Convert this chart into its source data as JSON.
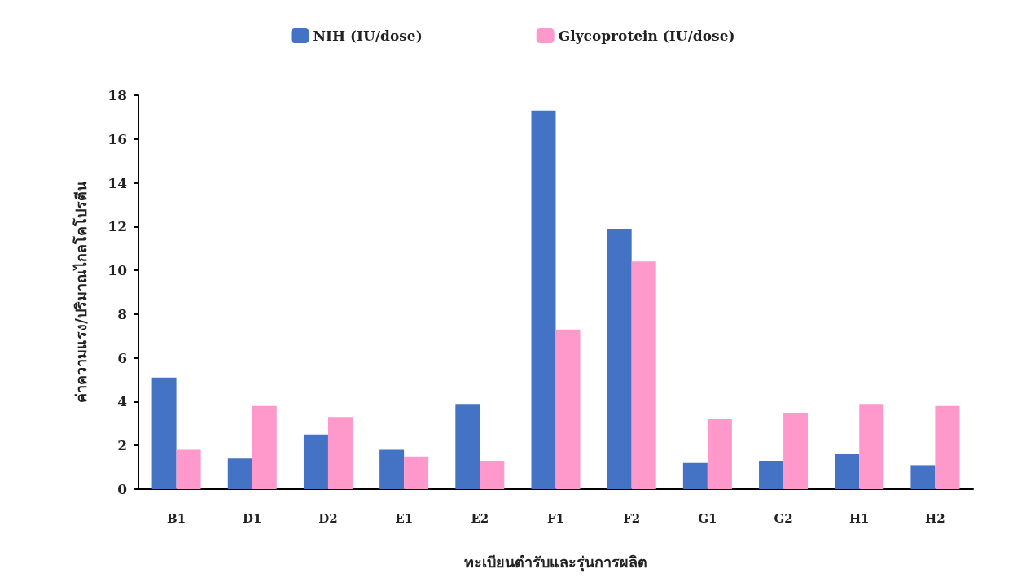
{
  "chart_data": {
    "type": "bar",
    "xlabel": "ทะเบียนตำรับและรุ่นการผลิต",
    "ylabel": "ค่าความแรง/ปริมาณไกลโคโปรตีน",
    "categories": [
      "B1",
      "D1",
      "D2",
      "E1",
      "E2",
      "F1",
      "F2",
      "G1",
      "G2",
      "H1",
      "H2"
    ],
    "series": [
      {
        "name": "NIH (IU/dose)",
        "color": "#4472c4",
        "values": [
          5.1,
          1.4,
          2.5,
          1.8,
          3.9,
          17.3,
          11.9,
          1.2,
          1.3,
          1.6,
          1.1
        ]
      },
      {
        "name": "Glycoprotein (IU/dose)",
        "color": "#ff99cc",
        "values": [
          1.8,
          3.8,
          3.3,
          1.5,
          1.3,
          7.3,
          10.4,
          3.2,
          3.5,
          3.9,
          3.8
        ]
      }
    ],
    "ylim": [
      0,
      18
    ],
    "yticks": [
      0,
      2,
      4,
      6,
      8,
      10,
      12,
      14,
      16,
      18
    ],
    "grid": false,
    "legend": "top"
  }
}
